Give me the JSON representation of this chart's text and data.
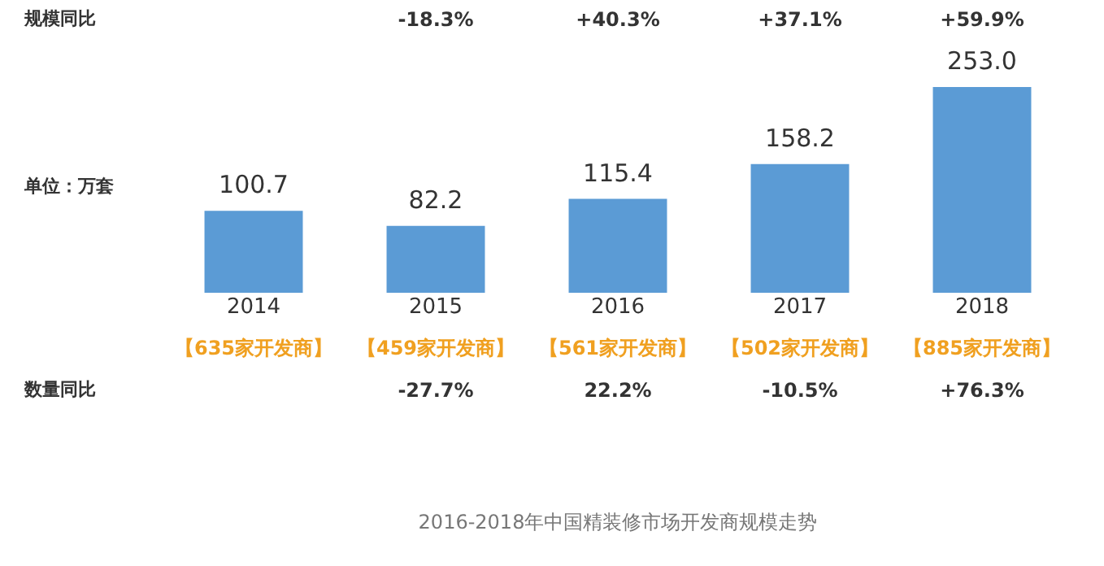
{
  "chart_data": {
    "type": "bar",
    "title": "2016-2018年中国精装修市场开发商规模走势",
    "categories": [
      "2014",
      "2015",
      "2016",
      "2017",
      "2018"
    ],
    "values": [
      100.7,
      82.2,
      115.4,
      158.2,
      253.0
    ],
    "value_labels": [
      "100.7",
      "82.2",
      "115.4",
      "158.2",
      "253.0"
    ],
    "color": "#5b9bd5",
    "tick_labels": "x",
    "annotations": [
      "规模同比",
      "单位：万套",
      "数量同比",
      "【635家开发商】",
      "【459家开发商】",
      "【561家开发商】",
      "【502家开发商】",
      "【885家开发商】",
      "-18.3%",
      "+40.3%",
      "+37.1%",
      "+59.9%",
      "-27.7%",
      "22.2%",
      "-10.5%",
      "+76.3%"
    ]
  }
}
